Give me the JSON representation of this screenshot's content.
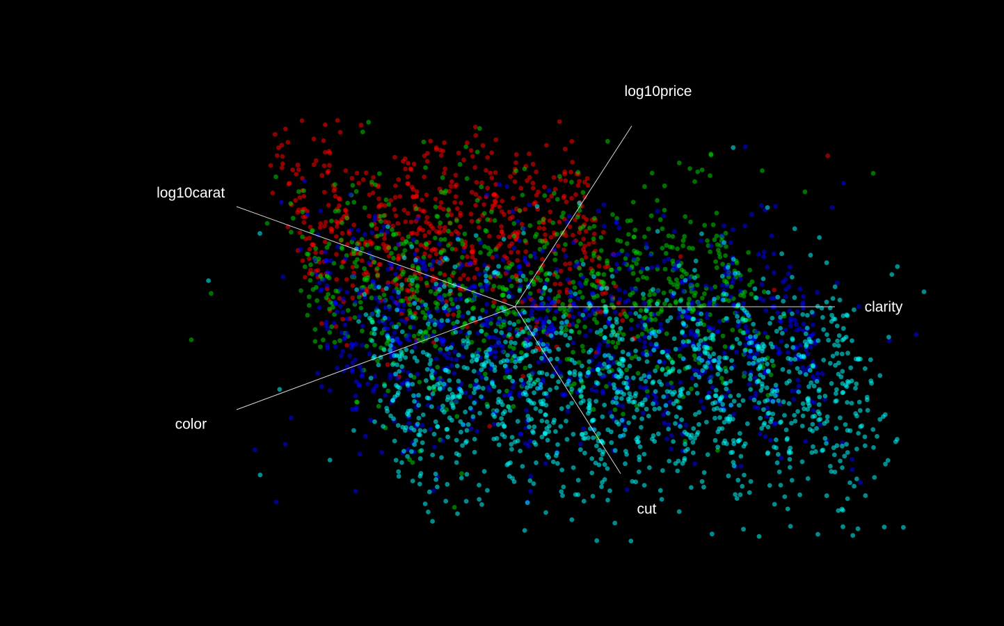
{
  "chart_data": {
    "type": "scatter",
    "variables": [
      "log10carat",
      "log10price",
      "clarity",
      "cut",
      "color"
    ],
    "series": [
      {
        "color": "#ff0000"
      },
      {
        "color": "#00cc00"
      },
      {
        "color": "#0000ff"
      },
      {
        "color": "#00ffff"
      }
    ],
    "axes": [
      {
        "label": "log10price",
        "dir": [
          0.42,
          -0.65
        ]
      },
      {
        "label": "log10carat",
        "dir": [
          -1.0,
          -0.36
        ]
      },
      {
        "label": "clarity",
        "dir": [
          1.15,
          0.0
        ]
      },
      {
        "label": "cut",
        "dir": [
          0.38,
          0.6
        ]
      },
      {
        "label": "color",
        "dir": [
          -1.0,
          0.37
        ]
      }
    ],
    "background": "#000000",
    "legend": "none",
    "grid": false
  }
}
